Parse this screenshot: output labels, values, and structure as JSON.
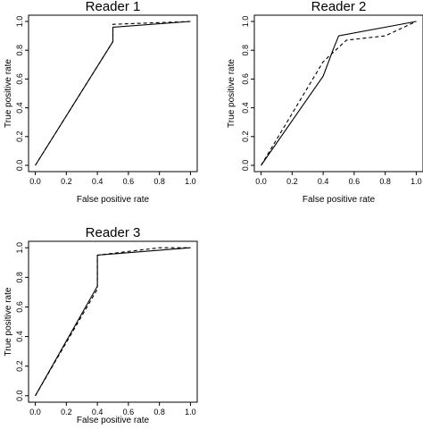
{
  "chart_data": [
    {
      "type": "line",
      "title": "Reader 1",
      "xlabel": "False positive rate",
      "ylabel": "True positive rate",
      "xlim": [
        0,
        1
      ],
      "ylim": [
        0,
        1
      ],
      "xticks": [
        "0.0",
        "0.2",
        "0.4",
        "0.6",
        "0.8",
        "1.0"
      ],
      "yticks": [
        "0.0",
        "0.2",
        "0.4",
        "0.6",
        "0.8",
        "1.0"
      ],
      "grid": false,
      "series": [
        {
          "style": "solid",
          "x": [
            0,
            0.5,
            0.5,
            1.0
          ],
          "y": [
            0,
            0.86,
            0.96,
            1.0
          ]
        },
        {
          "style": "dashed",
          "x": [
            0,
            0.5,
            0.5,
            1.0
          ],
          "y": [
            0,
            0.86,
            0.98,
            1.0
          ]
        }
      ]
    },
    {
      "type": "line",
      "title": "Reader 2",
      "xlabel": "False positive rate",
      "ylabel": "True positive rate",
      "xlim": [
        0,
        1
      ],
      "ylim": [
        0,
        1
      ],
      "xticks": [
        "0.0",
        "0.2",
        "0.4",
        "0.6",
        "0.8",
        "1.0"
      ],
      "yticks": [
        "0.0",
        "0.2",
        "0.4",
        "0.6",
        "0.8",
        "1.0"
      ],
      "grid": false,
      "series": [
        {
          "style": "solid",
          "x": [
            0,
            0.4,
            0.47,
            0.5,
            1.0
          ],
          "y": [
            0,
            0.62,
            0.82,
            0.9,
            1.0
          ]
        },
        {
          "style": "dashed",
          "x": [
            0,
            0.4,
            0.55,
            0.8,
            1.0
          ],
          "y": [
            0,
            0.72,
            0.87,
            0.9,
            1.0
          ]
        }
      ]
    },
    {
      "type": "line",
      "title": "Reader 3",
      "xlabel": "False positive rate",
      "ylabel": "True positive rate",
      "xlim": [
        0,
        1
      ],
      "ylim": [
        0,
        1
      ],
      "xticks": [
        "0.0",
        "0.2",
        "0.4",
        "0.6",
        "0.8",
        "1.0"
      ],
      "yticks": [
        "0.0",
        "0.2",
        "0.4",
        "0.6",
        "0.8",
        "1.0"
      ],
      "grid": false,
      "series": [
        {
          "style": "solid",
          "x": [
            0,
            0.4,
            0.4,
            1.0
          ],
          "y": [
            0,
            0.74,
            0.95,
            1.0
          ]
        },
        {
          "style": "dashed",
          "x": [
            0,
            0.4,
            0.4,
            0.8,
            1.0
          ],
          "y": [
            0,
            0.72,
            0.95,
            1.0,
            1.0
          ]
        }
      ]
    }
  ]
}
